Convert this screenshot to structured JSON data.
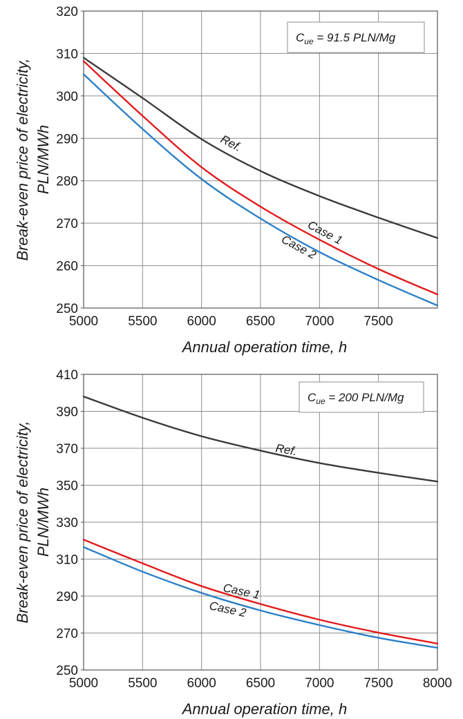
{
  "chart_data": [
    {
      "type": "line",
      "annotation": {
        "symbol": "C",
        "subscript": "ue",
        "text": " = 91.5 PLN/Mg"
      },
      "xlabel": "Annual operation time, h",
      "ylabel_line1": "Break-even price of electricity,",
      "ylabel_line2": "PLN/MWh",
      "xlim": [
        5000,
        8000
      ],
      "ylim": [
        250,
        320
      ],
      "xticks": [
        5000,
        5500,
        6000,
        6500,
        7000,
        7500
      ],
      "yticks": [
        250,
        260,
        270,
        280,
        290,
        300,
        310,
        320
      ],
      "grid": true,
      "x": [
        5000,
        5500,
        6000,
        6500,
        7000,
        7500,
        8000
      ],
      "series": [
        {
          "name": "Ref.",
          "color": "#3a3a3a",
          "values": [
            309,
            299.5,
            289.8,
            282.3,
            276.4,
            271.3,
            266.5
          ]
        },
        {
          "name": "Case 1",
          "color": "#e31a1c",
          "values": [
            308.2,
            295.3,
            283.2,
            273.9,
            266.1,
            259.2,
            253.2
          ]
        },
        {
          "name": "Case 2",
          "color": "#2a7fc7",
          "values": [
            305.1,
            292.2,
            280.4,
            271.1,
            263.2,
            256.6,
            250.6
          ]
        }
      ]
    },
    {
      "type": "line",
      "annotation": {
        "symbol": "C",
        "subscript": "ue",
        "text": " = 200 PLN/Mg"
      },
      "xlabel": "Annual operation time, h",
      "ylabel_line1": "Break-even price of electricity,",
      "ylabel_line2": "PLN/MWh",
      "xlim": [
        5000,
        8000
      ],
      "ylim": [
        250,
        410
      ],
      "xticks": [
        5000,
        5500,
        6000,
        6500,
        7000,
        7500,
        8000
      ],
      "yticks": [
        250,
        270,
        290,
        310,
        330,
        350,
        370,
        390,
        410
      ],
      "grid": true,
      "x": [
        5000,
        5500,
        6000,
        6500,
        7000,
        7500,
        8000
      ],
      "series": [
        {
          "name": "Ref.",
          "color": "#3a3a3a",
          "values": [
            398,
            386.5,
            376.5,
            368.7,
            362,
            356.7,
            352
          ]
        },
        {
          "name": "Case 1",
          "color": "#e31a1c",
          "values": [
            320.5,
            307.7,
            295.4,
            285.7,
            277.2,
            270.2,
            264.3
          ]
        },
        {
          "name": "Case 2",
          "color": "#2a7fc7",
          "values": [
            316.5,
            303.2,
            291.7,
            282.2,
            274.3,
            267.4,
            262
          ]
        }
      ]
    }
  ]
}
